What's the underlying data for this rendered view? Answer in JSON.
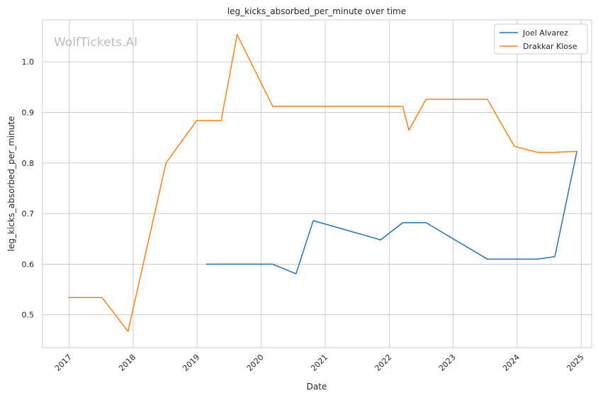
{
  "chart_data": {
    "type": "line",
    "title": "leg_kicks_absorbed_per_minute over time",
    "xlabel": "Date",
    "ylabel": "leg_kicks_absorbed_per_minute",
    "watermark": "WolfTickets.AI",
    "xlim": [
      "2016-08-01",
      "2025-03-01"
    ],
    "ylim": [
      0.435,
      1.083
    ],
    "x_ticks": [
      "2017-01-01",
      "2018-01-01",
      "2019-01-01",
      "2020-01-01",
      "2021-01-01",
      "2022-01-01",
      "2023-01-01",
      "2024-01-01",
      "2025-01-01"
    ],
    "x_tick_labels": [
      "2017",
      "2018",
      "2019",
      "2020",
      "2021",
      "2022",
      "2023",
      "2024",
      "2025"
    ],
    "y_ticks": [
      0.5,
      0.6,
      0.7,
      0.8,
      0.9,
      1.0
    ],
    "y_tick_labels": [
      "0.5",
      "0.6",
      "0.7",
      "0.8",
      "0.9",
      "1.0"
    ],
    "grid": true,
    "legend_position": "top-right",
    "series": [
      {
        "name": "Joel Alvarez",
        "color": "#1f77b4",
        "points": [
          {
            "x": "2019-02-23",
            "y": 0.6
          },
          {
            "x": "2020-03-07",
            "y": 0.6
          },
          {
            "x": "2020-07-18",
            "y": 0.581
          },
          {
            "x": "2020-10-24",
            "y": 0.686
          },
          {
            "x": "2021-11-13",
            "y": 0.648
          },
          {
            "x": "2022-03-19",
            "y": 0.682
          },
          {
            "x": "2022-07-30",
            "y": 0.682
          },
          {
            "x": "2023-07-15",
            "y": 0.61
          },
          {
            "x": "2024-04-27",
            "y": 0.61
          },
          {
            "x": "2024-08-03",
            "y": 0.615
          },
          {
            "x": "2024-12-07",
            "y": 0.823
          }
        ]
      },
      {
        "name": "Drakkar Klose",
        "color": "#ff7f0e",
        "points": [
          {
            "x": "2016-12-30",
            "y": 0.534
          },
          {
            "x": "2017-07-07",
            "y": 0.534
          },
          {
            "x": "2017-12-02",
            "y": 0.467
          },
          {
            "x": "2018-07-07",
            "y": 0.8
          },
          {
            "x": "2018-12-29",
            "y": 0.884
          },
          {
            "x": "2019-05-18",
            "y": 0.884
          },
          {
            "x": "2019-08-17",
            "y": 1.054
          },
          {
            "x": "2020-03-07",
            "y": 0.912
          },
          {
            "x": "2022-03-19",
            "y": 0.912
          },
          {
            "x": "2022-04-23",
            "y": 0.865
          },
          {
            "x": "2022-07-30",
            "y": 0.926
          },
          {
            "x": "2023-07-15",
            "y": 0.926
          },
          {
            "x": "2023-12-16",
            "y": 0.833
          },
          {
            "x": "2024-04-27",
            "y": 0.821
          },
          {
            "x": "2024-08-03",
            "y": 0.821
          },
          {
            "x": "2024-12-07",
            "y": 0.823
          }
        ]
      }
    ]
  }
}
